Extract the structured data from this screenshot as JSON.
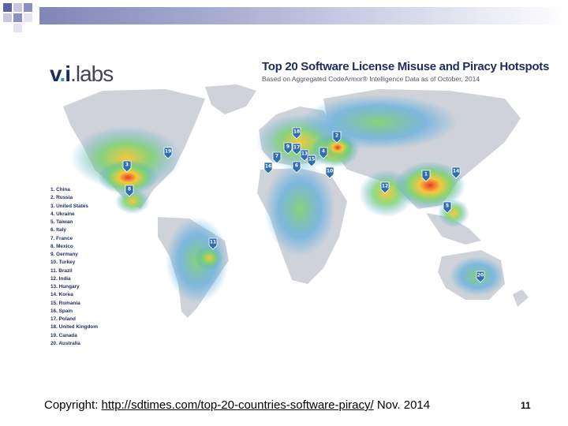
{
  "brand": {
    "name_a": "v",
    "name_dot": ".",
    "name_b": "i",
    "name_c": ".labs"
  },
  "title": "Top 20 Software License Misuse and Piracy Hotspots",
  "subtitle": "Based on Aggregated CodeArmor® Intelligence Data as of October, 2014",
  "legend": [
    "1. China",
    "2. Russia",
    "3. United States",
    "4. Ukraine",
    "5. Taiwan",
    "6. Italy",
    "7. France",
    "8. Mexico",
    "9. Germany",
    "10. Turkey",
    "11. Brazil",
    "12. India",
    "13. Hungary",
    "14. Korea",
    "15. Romania",
    "16. Spain",
    "17. Poland",
    "18. United Kingdom",
    "19. Canada",
    "20. Australia"
  ],
  "pins": [
    {
      "label": "1",
      "country": "China"
    },
    {
      "label": "2",
      "country": "Russia"
    },
    {
      "label": "3",
      "country": "United States"
    },
    {
      "label": "4",
      "country": "Ukraine"
    },
    {
      "label": "5",
      "country": "Taiwan"
    },
    {
      "label": "6",
      "country": "Italy"
    },
    {
      "label": "7",
      "country": "France"
    },
    {
      "label": "8",
      "country": "Mexico"
    },
    {
      "label": "9",
      "country": "Germany"
    },
    {
      "label": "10",
      "country": "Turkey"
    },
    {
      "label": "11",
      "country": "Brazil"
    },
    {
      "label": "12",
      "country": "India"
    },
    {
      "label": "13",
      "country": "Hungary"
    },
    {
      "label": "14",
      "country": "Korea"
    },
    {
      "label": "15",
      "country": "Romania"
    },
    {
      "label": "16",
      "country": "Spain"
    },
    {
      "label": "17",
      "country": "Poland"
    },
    {
      "label": "18",
      "country": "United Kingdom"
    },
    {
      "label": "19",
      "country": "Canada"
    },
    {
      "label": "20",
      "country": "Australia"
    }
  ],
  "colors": {
    "land": "#cfd3d9",
    "heat_low": "#4aa6e0",
    "heat_mid": "#7fd36b",
    "heat_high": "#f6c83a",
    "heat_peak": "#e8392a",
    "pin": "#2f6fb0"
  },
  "footer": {
    "prefix": "Copyright: ",
    "url": "http://sdtimes.com/top-20-countries-software-piracy/",
    "suffix": " Nov. 2014"
  },
  "page_number": "11"
}
